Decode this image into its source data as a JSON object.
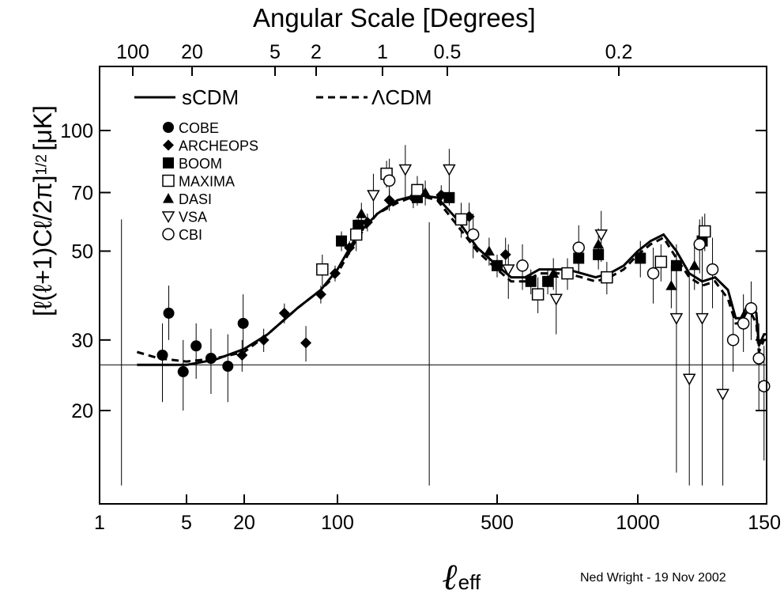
{
  "chart_data": {
    "type": "scatter",
    "title": "Angular Scale [Degrees]",
    "xlabel": "ℓ",
    "xlabel_sub": "eff",
    "ylabel": "[ℓ(ℓ+1)Cℓ/2π]",
    "ylabel_exp": "1/2",
    "ylabel_unit": "[μK]",
    "credit": "Ned Wright - 19 Nov 2002",
    "x_ticks": [
      "1",
      "5",
      "20",
      "100",
      "500",
      "1000",
      "150"
    ],
    "x_top_ticks": [
      "100",
      "20",
      "5",
      "2",
      "1",
      "0.5",
      "0.2"
    ],
    "y_ticks": [
      "20",
      "30",
      "50",
      "70",
      "100"
    ],
    "ylim": [
      13,
      140
    ],
    "xlim": [
      1,
      1500
    ],
    "reference_line_y": 26,
    "legend_lines": [
      {
        "name": "sCDM",
        "style": "solid"
      },
      {
        "name": "ΛCDM",
        "style": "dashed"
      }
    ],
    "legend_markers": [
      {
        "name": "COBE",
        "marker": "filled-circle"
      },
      {
        "name": "ARCHEOPS",
        "marker": "filled-diamond"
      },
      {
        "name": "BOOM",
        "marker": "filled-square"
      },
      {
        "name": "MAXIMA",
        "marker": "open-square"
      },
      {
        "name": "DASI",
        "marker": "filled-triangle"
      },
      {
        "name": "VSA",
        "marker": "open-triangle-down"
      },
      {
        "name": "CBI",
        "marker": "open-circle"
      }
    ],
    "series": [
      {
        "name": "COBE",
        "marker": "filled-circle",
        "points": [
          {
            "x": 3.2,
            "y": 27.5,
            "lo": 21,
            "hi": 33
          },
          {
            "x": 3.6,
            "y": 35,
            "lo": 30,
            "hi": 41
          },
          {
            "x": 4.7,
            "y": 25,
            "lo": 20,
            "hi": 30
          },
          {
            "x": 6.3,
            "y": 29,
            "lo": 24,
            "hi": 33
          },
          {
            "x": 9.0,
            "y": 27,
            "lo": 22,
            "hi": 32
          },
          {
            "x": 13.5,
            "y": 25.8,
            "lo": 21,
            "hi": 31
          },
          {
            "x": 19.5,
            "y": 33,
            "lo": 27,
            "hi": 39
          }
        ]
      },
      {
        "name": "ARCHEOPS",
        "marker": "filled-diamond",
        "points": [
          {
            "x": 19,
            "y": 27.5,
            "lo": 25,
            "hi": 30
          },
          {
            "x": 28,
            "y": 30,
            "lo": 28,
            "hi": 32
          },
          {
            "x": 40,
            "y": 35,
            "lo": 33,
            "hi": 37
          },
          {
            "x": 58,
            "y": 29.5,
            "lo": 26.5,
            "hi": 32.5
          },
          {
            "x": 75,
            "y": 39,
            "lo": 37,
            "hi": 41
          },
          {
            "x": 96,
            "y": 44,
            "lo": 42,
            "hi": 46
          },
          {
            "x": 130,
            "y": 51,
            "lo": 49,
            "hi": 53
          },
          {
            "x": 175,
            "y": 59,
            "lo": 56,
            "hi": 62
          },
          {
            "x": 230,
            "y": 67,
            "lo": 63,
            "hi": 71
          },
          {
            "x": 290,
            "y": 68,
            "lo": 64,
            "hi": 72
          },
          {
            "x": 360,
            "y": 69,
            "lo": 65,
            "hi": 73
          },
          {
            "x": 430,
            "y": 61,
            "lo": 56,
            "hi": 66
          },
          {
            "x": 530,
            "y": 49,
            "lo": 44,
            "hi": 54
          }
        ]
      },
      {
        "name": "BOOM",
        "marker": "filled-square",
        "points": [
          {
            "x": 110,
            "y": 53,
            "lo": 50,
            "hi": 56
          },
          {
            "x": 152,
            "y": 58,
            "lo": 55,
            "hi": 61
          },
          {
            "x": 300,
            "y": 68,
            "lo": 65,
            "hi": 71
          },
          {
            "x": 380,
            "y": 68,
            "lo": 65,
            "hi": 71
          },
          {
            "x": 500,
            "y": 46,
            "lo": 43,
            "hi": 49
          },
          {
            "x": 620,
            "y": 42,
            "lo": 39,
            "hi": 45
          },
          {
            "x": 680,
            "y": 42,
            "lo": 39,
            "hi": 45
          },
          {
            "x": 790,
            "y": 48,
            "lo": 44,
            "hi": 52
          },
          {
            "x": 860,
            "y": 49,
            "lo": 45,
            "hi": 53
          },
          {
            "x": 1010,
            "y": 48,
            "lo": 43,
            "hi": 53
          },
          {
            "x": 1150,
            "y": 46,
            "lo": 40,
            "hi": 52
          },
          {
            "x": 1250,
            "y": 53,
            "lo": 45,
            "hi": 61
          }
        ]
      },
      {
        "name": "MAXIMA",
        "marker": "open-square",
        "points": [
          {
            "x": 77,
            "y": 45,
            "lo": 41,
            "hi": 49
          },
          {
            "x": 147,
            "y": 55,
            "lo": 50,
            "hi": 60
          },
          {
            "x": 223,
            "y": 78,
            "lo": 72,
            "hi": 84
          },
          {
            "x": 300,
            "y": 71,
            "lo": 65,
            "hi": 77
          },
          {
            "x": 410,
            "y": 60,
            "lo": 54,
            "hi": 66
          },
          {
            "x": 645,
            "y": 39,
            "lo": 35,
            "hi": 43
          },
          {
            "x": 750,
            "y": 44,
            "lo": 40,
            "hi": 48
          },
          {
            "x": 890,
            "y": 43,
            "lo": 39,
            "hi": 47
          },
          {
            "x": 1090,
            "y": 47,
            "lo": 42,
            "hi": 52
          },
          {
            "x": 1260,
            "y": 56,
            "lo": 50,
            "hi": 62
          }
        ]
      },
      {
        "name": "DASI",
        "marker": "filled-triangle",
        "points": [
          {
            "x": 160,
            "y": 62,
            "lo": 58,
            "hi": 66
          },
          {
            "x": 320,
            "y": 70,
            "lo": 65,
            "hi": 75
          },
          {
            "x": 480,
            "y": 50,
            "lo": 46,
            "hi": 54
          },
          {
            "x": 700,
            "y": 44,
            "lo": 40,
            "hi": 48
          },
          {
            "x": 860,
            "y": 52,
            "lo": 47,
            "hi": 57
          },
          {
            "x": 1130,
            "y": 41,
            "lo": 36,
            "hi": 46
          },
          {
            "x": 1220,
            "y": 46,
            "lo": 40,
            "hi": 52
          }
        ]
      },
      {
        "name": "VSA",
        "marker": "open-triangle-down",
        "points": [
          {
            "x": 190,
            "y": 69,
            "lo": 60,
            "hi": 78
          },
          {
            "x": 270,
            "y": 80,
            "lo": 68,
            "hi": 92
          },
          {
            "x": 380,
            "y": 80,
            "lo": 70,
            "hi": 90
          },
          {
            "x": 540,
            "y": 45,
            "lo": 38,
            "hi": 52
          },
          {
            "x": 710,
            "y": 38,
            "lo": 31,
            "hi": 45
          },
          {
            "x": 870,
            "y": 55,
            "lo": 47,
            "hi": 63
          },
          {
            "x": 1150,
            "y": 34,
            "lo": 14,
            "hi": 48
          },
          {
            "x": 1200,
            "y": 24,
            "lo": 13,
            "hi": 44
          },
          {
            "x": 1250,
            "y": 34,
            "lo": 13,
            "hi": 47
          },
          {
            "x": 1330,
            "y": 22,
            "lo": 13,
            "hi": 40
          }
        ]
      },
      {
        "name": "CBI",
        "marker": "open-circle",
        "points": [
          {
            "x": 230,
            "y": 75,
            "lo": 65,
            "hi": 85
          },
          {
            "x": 440,
            "y": 55,
            "lo": 48,
            "hi": 62
          },
          {
            "x": 590,
            "y": 46,
            "lo": 40,
            "hi": 52
          },
          {
            "x": 790,
            "y": 51,
            "lo": 44,
            "hi": 58
          },
          {
            "x": 1060,
            "y": 44,
            "lo": 37,
            "hi": 51
          },
          {
            "x": 1240,
            "y": 52,
            "lo": 44,
            "hi": 60
          },
          {
            "x": 1290,
            "y": 45,
            "lo": 36,
            "hi": 54
          },
          {
            "x": 1370,
            "y": 30,
            "lo": 25,
            "hi": 36
          },
          {
            "x": 1410,
            "y": 33,
            "lo": 28,
            "hi": 39
          },
          {
            "x": 1440,
            "y": 36,
            "lo": 30,
            "hi": 42
          },
          {
            "x": 1470,
            "y": 27,
            "lo": 20,
            "hi": 33
          },
          {
            "x": 1490,
            "y": 23,
            "lo": 15,
            "hi": 29
          }
        ]
      }
    ],
    "model_curves": [
      {
        "name": "sCDM",
        "style": "solid",
        "points": [
          [
            2,
            26
          ],
          [
            5,
            26
          ],
          [
            10,
            26.8
          ],
          [
            20,
            28.5
          ],
          [
            30,
            31
          ],
          [
            50,
            36
          ],
          [
            75,
            40
          ],
          [
            100,
            45
          ],
          [
            150,
            55
          ],
          [
            200,
            62
          ],
          [
            250,
            67
          ],
          [
            300,
            69
          ],
          [
            350,
            68
          ],
          [
            400,
            60
          ],
          [
            450,
            51
          ],
          [
            500,
            46
          ],
          [
            550,
            43
          ],
          [
            600,
            43
          ],
          [
            650,
            45
          ],
          [
            700,
            45
          ],
          [
            750,
            45
          ],
          [
            800,
            44
          ],
          [
            850,
            43
          ],
          [
            900,
            44
          ],
          [
            950,
            46
          ],
          [
            1000,
            50
          ],
          [
            1050,
            53
          ],
          [
            1100,
            55
          ],
          [
            1150,
            50
          ],
          [
            1200,
            44
          ],
          [
            1250,
            42
          ],
          [
            1300,
            43
          ],
          [
            1350,
            40
          ],
          [
            1380,
            34
          ],
          [
            1400,
            34
          ],
          [
            1420,
            36
          ],
          [
            1440,
            37
          ],
          [
            1460,
            35
          ],
          [
            1470,
            29
          ],
          [
            1480,
            30
          ],
          [
            1490,
            31
          ],
          [
            1500,
            31
          ]
        ]
      },
      {
        "name": "ΛCDM",
        "style": "dashed",
        "points": [
          [
            2,
            28
          ],
          [
            3,
            27
          ],
          [
            5,
            26.5
          ],
          [
            10,
            27
          ],
          [
            20,
            28
          ],
          [
            30,
            31
          ],
          [
            50,
            36
          ],
          [
            75,
            40
          ],
          [
            100,
            44
          ],
          [
            150,
            54
          ],
          [
            200,
            62
          ],
          [
            250,
            66
          ],
          [
            300,
            69
          ],
          [
            350,
            67
          ],
          [
            400,
            58
          ],
          [
            450,
            50
          ],
          [
            500,
            45
          ],
          [
            550,
            42
          ],
          [
            600,
            42
          ],
          [
            650,
            44
          ],
          [
            700,
            44
          ],
          [
            750,
            44
          ],
          [
            800,
            43
          ],
          [
            850,
            42
          ],
          [
            900,
            43
          ],
          [
            950,
            45
          ],
          [
            1000,
            49
          ],
          [
            1050,
            52
          ],
          [
            1100,
            54
          ],
          [
            1150,
            48
          ],
          [
            1200,
            43
          ],
          [
            1250,
            41
          ],
          [
            1300,
            42
          ],
          [
            1350,
            38
          ],
          [
            1380,
            33
          ],
          [
            1400,
            33
          ],
          [
            1420,
            35
          ],
          [
            1440,
            35
          ],
          [
            1460,
            33
          ],
          [
            1470,
            28
          ],
          [
            1480,
            29
          ],
          [
            1490,
            30
          ],
          [
            1500,
            30
          ]
        ]
      }
    ]
  }
}
